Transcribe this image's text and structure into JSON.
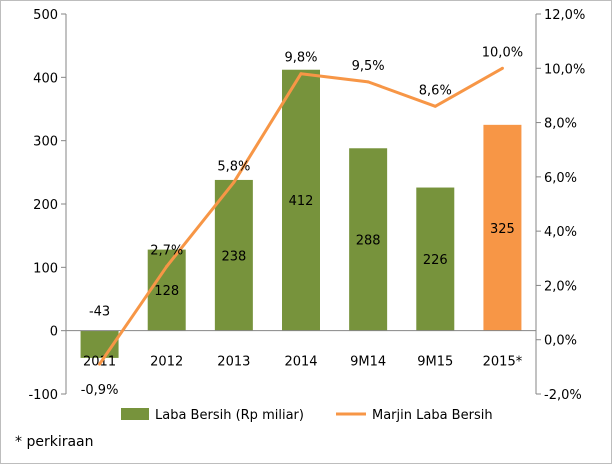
{
  "chart_data": {
    "type": "bar+line",
    "categories": [
      "2011",
      "2012",
      "2013",
      "2014",
      "9M14",
      "9M15",
      "2015*"
    ],
    "series": [
      {
        "name": "Laba Bersih (Rp miliar)",
        "type": "bar",
        "axis": "left",
        "values": [
          -43,
          128,
          238,
          412,
          288,
          226,
          325
        ],
        "data_labels": [
          "-43",
          "128",
          "238",
          "412",
          "288",
          "226",
          "325"
        ],
        "bar_colors": [
          "#77933c",
          "#77933c",
          "#77933c",
          "#77933c",
          "#77933c",
          "#77933c",
          "#f79646"
        ]
      },
      {
        "name": "Marjin Laba Bersih",
        "type": "line",
        "axis": "right",
        "values": [
          -0.9,
          2.7,
          5.8,
          9.8,
          9.5,
          8.6,
          10.0
        ],
        "data_labels": [
          "-0,9%",
          "2,7%",
          "5,8%",
          "9,8%",
          "9,5%",
          "8,6%",
          "10,0%"
        ],
        "color": "#f79646"
      }
    ],
    "y_left": {
      "ylim": [
        -100,
        500
      ],
      "ticks": [
        "-100",
        "0",
        "100",
        "200",
        "300",
        "400",
        "500"
      ]
    },
    "y_right": {
      "ylim": [
        -2,
        12
      ],
      "ticks": [
        "-2,0%",
        "0,0%",
        "2,0%",
        "4,0%",
        "6,0%",
        "8,0%",
        "10,0%",
        "12,0%"
      ]
    },
    "grid": false,
    "legend_position": "bottom"
  },
  "footnote": "* perkiraan"
}
